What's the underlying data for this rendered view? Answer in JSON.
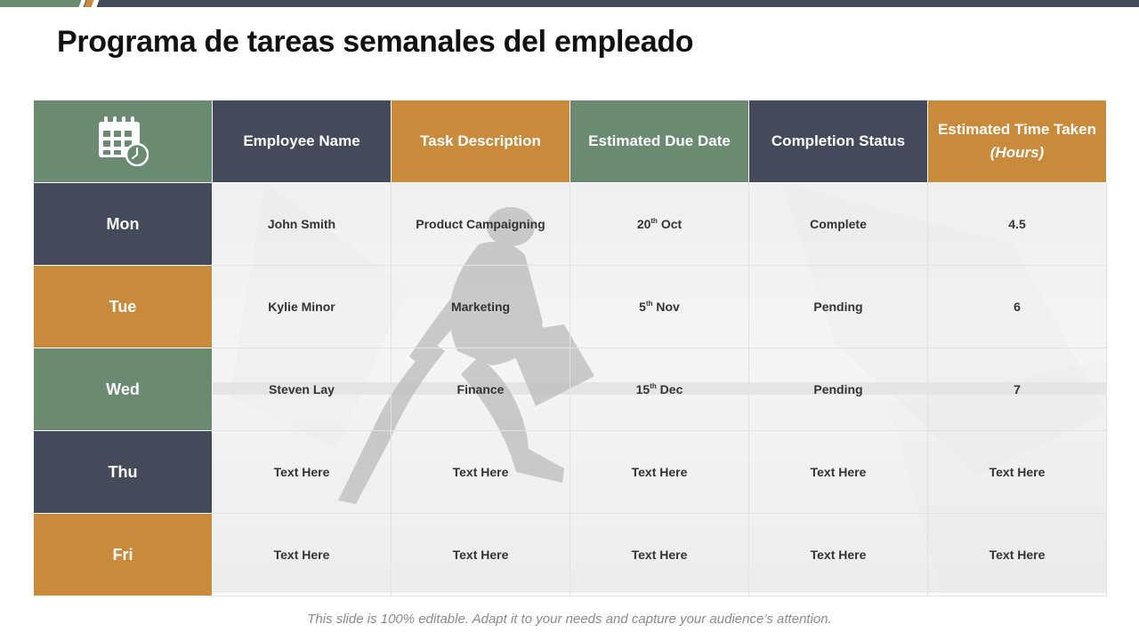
{
  "title": "Programa de tareas semanales del empleado",
  "colors": {
    "dark": "#454a5a",
    "orange": "#c98a3c",
    "green": "#6a8a72"
  },
  "header": {
    "icon": "calendar-clock-icon",
    "columns": [
      {
        "label": "Employee Name"
      },
      {
        "label": "Task Description"
      },
      {
        "label": "Estimated Due Date"
      },
      {
        "label": "Completion Status"
      },
      {
        "label": "Estimated Time Taken",
        "label_suffix": "(Hours)"
      }
    ]
  },
  "rows": [
    {
      "day": "Mon",
      "employee": "John Smith",
      "task": "Product Campaigning",
      "due_day": "20",
      "due_sup": "th",
      "due_month": "Oct",
      "status": "Complete",
      "hours": "4.5"
    },
    {
      "day": "Tue",
      "employee": "Kylie Minor",
      "task": "Marketing",
      "due_day": "5",
      "due_sup": "th",
      "due_month": "Nov",
      "status": "Pending",
      "hours": "6"
    },
    {
      "day": "Wed",
      "employee": "Steven Lay",
      "task": "Finance",
      "due_day": "15",
      "due_sup": "th",
      "due_month": "Dec",
      "status": "Pending",
      "hours": "7"
    },
    {
      "day": "Thu",
      "employee": "Text Here",
      "task": "Text Here",
      "due": "Text Here",
      "status": "Text Here",
      "hours": "Text Here"
    },
    {
      "day": "Fri",
      "employee": "Text Here",
      "task": "Text Here",
      "due": "Text Here",
      "status": "Text Here",
      "hours": "Text Here"
    }
  ],
  "footer": "This slide is 100% editable. Adapt it to your needs and capture your audience’s attention."
}
